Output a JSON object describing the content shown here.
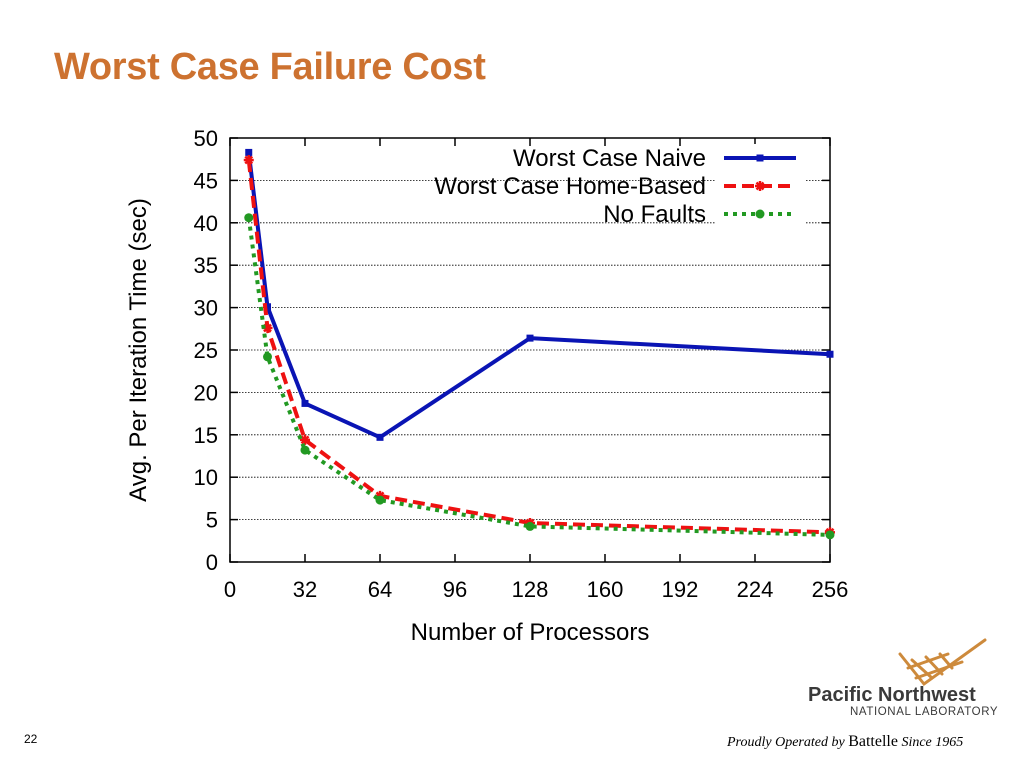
{
  "slide": {
    "title": "Worst Case Failure Cost",
    "page_number": "22",
    "logo": {
      "line1": "Pacific Northwest",
      "line2": "NATIONAL LABORATORY"
    },
    "tagline": {
      "prefix": "Proudly Operated by",
      "brand": "Battelle",
      "suffix": "Since 1965"
    }
  },
  "chart_data": {
    "type": "line",
    "xlabel": "Number of Processors",
    "ylabel": "Avg. Per Iteration Time (sec)",
    "xlim": [
      0,
      256
    ],
    "ylim": [
      0,
      50
    ],
    "xticks": [
      0,
      32,
      64,
      96,
      128,
      160,
      192,
      224,
      256
    ],
    "yticks": [
      0,
      5,
      10,
      15,
      20,
      25,
      30,
      35,
      40,
      45,
      50
    ],
    "grid": "horizontal dotted",
    "legend": "top-right",
    "series": [
      {
        "name": "Worst Case Naive",
        "color": "#0a14b4",
        "style": "solid",
        "marker": "square",
        "x": [
          8,
          16,
          32,
          64,
          128,
          256
        ],
        "y": [
          48.3,
          30.1,
          18.7,
          14.7,
          26.4,
          24.5
        ]
      },
      {
        "name": "Worst Case Home-Based",
        "color": "#ee1111",
        "style": "dashed",
        "marker": "star",
        "x": [
          8,
          16,
          32,
          64,
          128,
          256
        ],
        "y": [
          47.4,
          27.6,
          14.4,
          7.8,
          4.6,
          3.5
        ]
      },
      {
        "name": "No Faults",
        "color": "#229922",
        "style": "dotted",
        "marker": "circle",
        "x": [
          8,
          16,
          32,
          64,
          128,
          256
        ],
        "y": [
          40.6,
          24.2,
          13.2,
          7.3,
          4.2,
          3.2
        ]
      }
    ]
  }
}
